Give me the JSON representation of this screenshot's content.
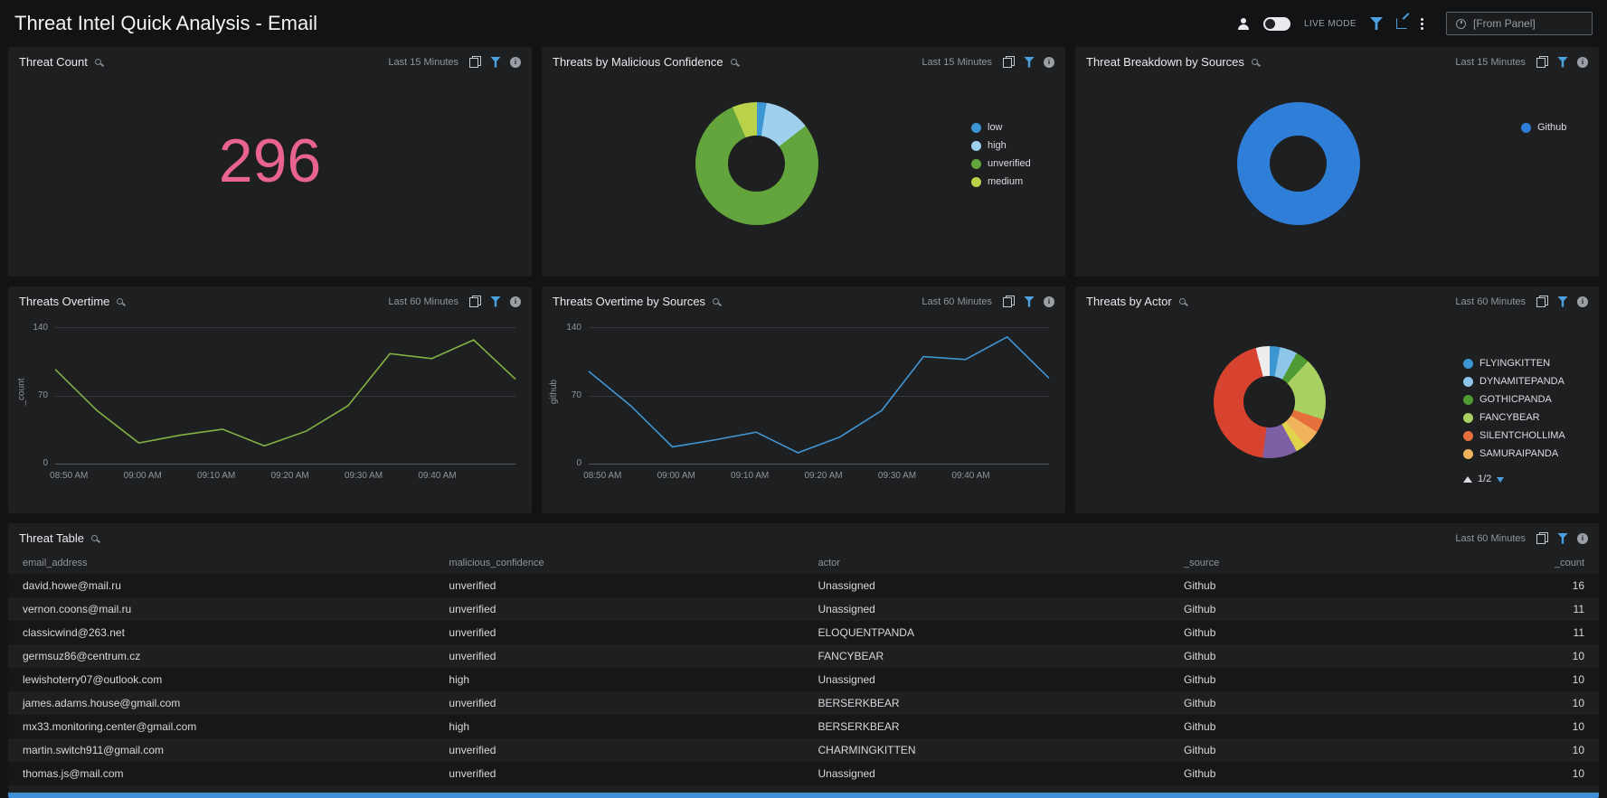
{
  "header": {
    "title": "Threat Intel Quick Analysis - Email",
    "live_mode_label": "LIVE MODE",
    "time_input_value": "[From Panel]"
  },
  "panels": {
    "threat_count": {
      "title": "Threat Count",
      "time_range": "Last 15 Minutes"
    },
    "malicious_confidence": {
      "title": "Threats by Malicious Confidence",
      "time_range": "Last 15 Minutes"
    },
    "sources_breakdown": {
      "title": "Threat Breakdown by Sources",
      "time_range": "Last 15 Minutes"
    },
    "threats_overtime": {
      "title": "Threats Overtime",
      "time_range": "Last 60 Minutes"
    },
    "overtime_by_sources": {
      "title": "Threats Overtime by Sources",
      "time_range": "Last 60 Minutes"
    },
    "threats_by_actor": {
      "title": "Threats by Actor",
      "time_range": "Last 60 Minutes",
      "pagination": "1/2"
    },
    "threat_table": {
      "title": "Threat Table",
      "time_range": "Last 60 Minutes"
    }
  },
  "chart_data": [
    {
      "type": "single_value",
      "title": "Threat Count",
      "value": 296,
      "color": "#e8638f"
    },
    {
      "type": "pie",
      "donut": true,
      "title": "Threats by Malicious Confidence",
      "legend_position": "right",
      "segments": [
        {
          "label": "low",
          "value": 2.5,
          "color": "#3c96d2"
        },
        {
          "label": "high",
          "value": 12,
          "color": "#9fd0ee"
        },
        {
          "label": "unverified",
          "value": 79,
          "color": "#63a53c"
        },
        {
          "label": "medium",
          "value": 6.5,
          "color": "#b9d24a"
        }
      ]
    },
    {
      "type": "pie",
      "donut": true,
      "title": "Threat Breakdown by Sources",
      "legend_position": "right",
      "segments": [
        {
          "label": "Github",
          "value": 100,
          "color": "#2f7ed8"
        }
      ]
    },
    {
      "type": "line",
      "title": "Threats Overtime",
      "ylabel": "_count",
      "color": "#84b145",
      "ylim": [
        0,
        140
      ],
      "grid": true,
      "yticks": [
        "140",
        "70",
        "0"
      ],
      "xticks": [
        "08:50 AM",
        "09:00 AM",
        "09:10 AM",
        "09:20 AM",
        "09:30 AM",
        "09:40 AM"
      ],
      "values": [
        97,
        55,
        22,
        30,
        36,
        19,
        34,
        60,
        113,
        108,
        127,
        87
      ]
    },
    {
      "type": "line",
      "title": "Threats Overtime by Sources",
      "ylabel": "github",
      "color": "#4195d3",
      "ylim": [
        0,
        140
      ],
      "grid": true,
      "yticks": [
        "140",
        "70",
        "0"
      ],
      "xticks": [
        "08:50 AM",
        "09:00 AM",
        "09:10 AM",
        "09:20 AM",
        "09:30 AM",
        "09:40 AM"
      ],
      "values": [
        95,
        60,
        18,
        25,
        33,
        12,
        28,
        55,
        110,
        107,
        130,
        88
      ]
    },
    {
      "type": "pie",
      "donut": true,
      "title": "Threats by Actor",
      "legend_position": "right",
      "legend_pagination": "1/2",
      "segments": [
        {
          "label": "FLYINGKITTEN",
          "value": 3,
          "color": "#3c96d2"
        },
        {
          "label": "DYNAMITEPANDA",
          "value": 5,
          "color": "#8ec6ea"
        },
        {
          "label": "GOTHICPANDA",
          "value": 4,
          "color": "#4f9a32"
        },
        {
          "label": "FANCYBEAR",
          "value": 18,
          "color": "#a9d161"
        },
        {
          "label": "SILENTCHOLLIMA",
          "value": 4,
          "color": "#e5703c"
        },
        {
          "label": "SAMURAIPANDA",
          "value": 5,
          "color": "#f0b35c"
        },
        {
          "label": "",
          "value": 3,
          "color": "#e0d24b"
        },
        {
          "label": "",
          "value": 10,
          "color": "#7e5fa5"
        },
        {
          "label": "",
          "value": 44,
          "color": "#d8432f"
        },
        {
          "label": "",
          "value": 4,
          "color": "#ededed"
        }
      ]
    },
    {
      "type": "table",
      "title": "Threat Table",
      "columns": [
        "email_address",
        "malicious_confidence",
        "actor",
        "_source",
        "_count"
      ],
      "rows": [
        [
          "david.howe@mail.ru",
          "unverified",
          "Unassigned",
          "Github",
          "16"
        ],
        [
          "vernon.coons@mail.ru",
          "unverified",
          "Unassigned",
          "Github",
          "11"
        ],
        [
          "classicwind@263.net",
          "unverified",
          "ELOQUENTPANDA",
          "Github",
          "11"
        ],
        [
          "germsuz86@centrum.cz",
          "unverified",
          "FANCYBEAR",
          "Github",
          "10"
        ],
        [
          "lewishoterry07@outlook.com",
          "high",
          "Unassigned",
          "Github",
          "10"
        ],
        [
          "james.adams.house@gmail.com",
          "unverified",
          "BERSERKBEAR",
          "Github",
          "10"
        ],
        [
          "mx33.monitoring.center@gmail.com",
          "high",
          "BERSERKBEAR",
          "Github",
          "10"
        ],
        [
          "martin.switch911@gmail.com",
          "unverified",
          "CHARMINGKITTEN",
          "Github",
          "10"
        ],
        [
          "thomas.js@mail.com",
          "unverified",
          "Unassigned",
          "Github",
          "10"
        ]
      ]
    }
  ]
}
